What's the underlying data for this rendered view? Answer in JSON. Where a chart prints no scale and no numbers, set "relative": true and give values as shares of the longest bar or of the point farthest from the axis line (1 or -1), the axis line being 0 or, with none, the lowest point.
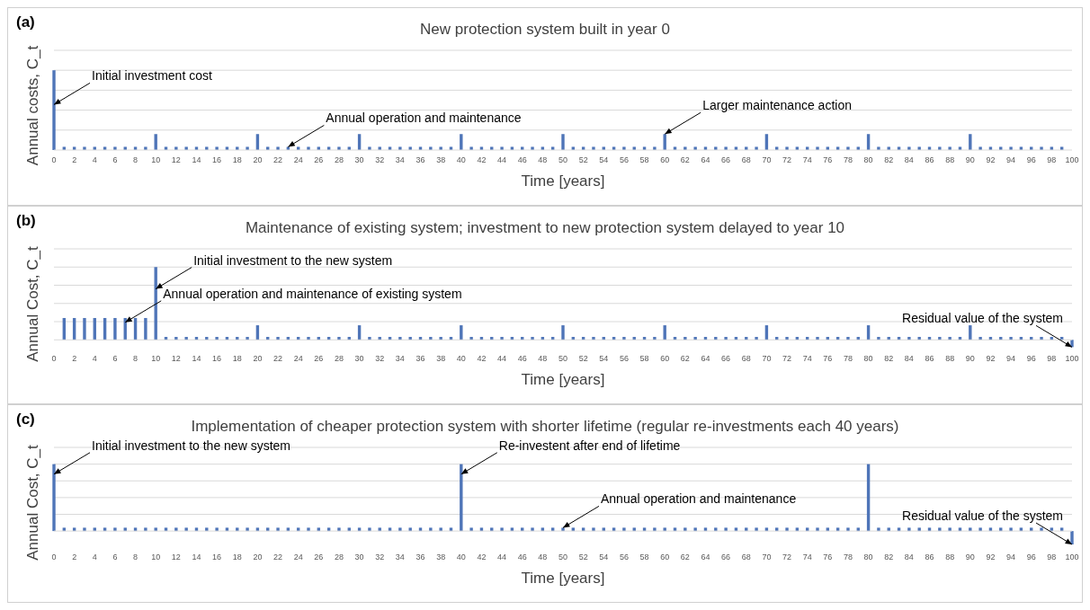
{
  "chart_data": [
    {
      "type": "bar",
      "title": "New protection system built in year 0",
      "xlabel": "Time [years]",
      "ylabel": "Annual costs, C_t",
      "relative": true,
      "grid": true,
      "color": "#4f75b8",
      "x": [
        0,
        1,
        2,
        3,
        4,
        5,
        6,
        7,
        8,
        9,
        10,
        11,
        12,
        13,
        14,
        15,
        16,
        17,
        18,
        19,
        20,
        21,
        22,
        23,
        24,
        25,
        26,
        27,
        28,
        29,
        30,
        31,
        32,
        33,
        34,
        35,
        36,
        37,
        38,
        39,
        40,
        41,
        42,
        43,
        44,
        45,
        46,
        47,
        48,
        49,
        50,
        51,
        52,
        53,
        54,
        55,
        56,
        57,
        58,
        59,
        60,
        61,
        62,
        63,
        64,
        65,
        66,
        67,
        68,
        69,
        70,
        71,
        72,
        73,
        74,
        75,
        76,
        77,
        78,
        79,
        80,
        81,
        82,
        83,
        84,
        85,
        86,
        87,
        88,
        89,
        90,
        91,
        92,
        93,
        94,
        95,
        96,
        97,
        98,
        99,
        100
      ],
      "values": [
        1,
        0.04,
        0.04,
        0.04,
        0.04,
        0.04,
        0.04,
        0.04,
        0.04,
        0.04,
        0.2,
        0.04,
        0.04,
        0.04,
        0.04,
        0.04,
        0.04,
        0.04,
        0.04,
        0.04,
        0.2,
        0.04,
        0.04,
        0.04,
        0.04,
        0.04,
        0.04,
        0.04,
        0.04,
        0.04,
        0.2,
        0.04,
        0.04,
        0.04,
        0.04,
        0.04,
        0.04,
        0.04,
        0.04,
        0.04,
        0.2,
        0.04,
        0.04,
        0.04,
        0.04,
        0.04,
        0.04,
        0.04,
        0.04,
        0.04,
        0.2,
        0.04,
        0.04,
        0.04,
        0.04,
        0.04,
        0.04,
        0.04,
        0.04,
        0.04,
        0.2,
        0.04,
        0.04,
        0.04,
        0.04,
        0.04,
        0.04,
        0.04,
        0.04,
        0.04,
        0.2,
        0.04,
        0.04,
        0.04,
        0.04,
        0.04,
        0.04,
        0.04,
        0.04,
        0.04,
        0.2,
        0.04,
        0.04,
        0.04,
        0.04,
        0.04,
        0.04,
        0.04,
        0.04,
        0.04,
        0.2,
        0.04,
        0.04,
        0.04,
        0.04,
        0.04,
        0.04,
        0.04,
        0.04,
        0.04,
        0
      ],
      "xlim": [
        0,
        100
      ],
      "xticks": [
        0,
        2,
        4,
        6,
        8,
        10,
        12,
        14,
        16,
        18,
        20,
        22,
        24,
        26,
        28,
        30,
        32,
        34,
        36,
        38,
        40,
        42,
        44,
        46,
        48,
        50,
        52,
        54,
        56,
        58,
        60,
        62,
        64,
        66,
        68,
        70,
        72,
        74,
        76,
        78,
        80,
        82,
        84,
        86,
        88,
        90,
        92,
        94,
        96,
        98,
        100
      ],
      "annotations": [
        "(a)",
        {
          "text": "Initial investment cost",
          "x": 0,
          "y": 0.57
        },
        {
          "text": "Annual operation and maintenance",
          "x": 23,
          "y": 0.04
        },
        {
          "text": "Larger maintenance action",
          "x": 60,
          "y": 0.2
        }
      ]
    },
    {
      "type": "bar",
      "title": "Maintenance of existing system; investment to new protection system delayed to year 10",
      "xlabel": "Time [years]",
      "ylabel": "Annual Cost, C_t",
      "relative": true,
      "grid": true,
      "color": "#4f75b8",
      "x": [
        0,
        1,
        2,
        3,
        4,
        5,
        6,
        7,
        8,
        9,
        10,
        11,
        12,
        13,
        14,
        15,
        16,
        17,
        18,
        19,
        20,
        21,
        22,
        23,
        24,
        25,
        26,
        27,
        28,
        29,
        30,
        31,
        32,
        33,
        34,
        35,
        36,
        37,
        38,
        39,
        40,
        41,
        42,
        43,
        44,
        45,
        46,
        47,
        48,
        49,
        50,
        51,
        52,
        53,
        54,
        55,
        56,
        57,
        58,
        59,
        60,
        61,
        62,
        63,
        64,
        65,
        66,
        67,
        68,
        69,
        70,
        71,
        72,
        73,
        74,
        75,
        76,
        77,
        78,
        79,
        80,
        81,
        82,
        83,
        84,
        85,
        86,
        87,
        88,
        89,
        90,
        91,
        92,
        93,
        94,
        95,
        96,
        97,
        98,
        99,
        100
      ],
      "values": [
        0,
        0.3,
        0.3,
        0.3,
        0.3,
        0.3,
        0.3,
        0.3,
        0.3,
        0.3,
        1,
        0.04,
        0.04,
        0.04,
        0.04,
        0.04,
        0.04,
        0.04,
        0.04,
        0.04,
        0.2,
        0.04,
        0.04,
        0.04,
        0.04,
        0.04,
        0.04,
        0.04,
        0.04,
        0.04,
        0.2,
        0.04,
        0.04,
        0.04,
        0.04,
        0.04,
        0.04,
        0.04,
        0.04,
        0.04,
        0.2,
        0.04,
        0.04,
        0.04,
        0.04,
        0.04,
        0.04,
        0.04,
        0.04,
        0.04,
        0.2,
        0.04,
        0.04,
        0.04,
        0.04,
        0.04,
        0.04,
        0.04,
        0.04,
        0.04,
        0.2,
        0.04,
        0.04,
        0.04,
        0.04,
        0.04,
        0.04,
        0.04,
        0.04,
        0.04,
        0.2,
        0.04,
        0.04,
        0.04,
        0.04,
        0.04,
        0.04,
        0.04,
        0.04,
        0.04,
        0.2,
        0.04,
        0.04,
        0.04,
        0.04,
        0.04,
        0.04,
        0.04,
        0.04,
        0.04,
        0.2,
        0.04,
        0.04,
        0.04,
        0.04,
        0.04,
        0.04,
        0.04,
        0.04,
        0.04,
        -0.1
      ],
      "xlim": [
        0,
        100
      ],
      "xticks": [
        0,
        2,
        4,
        6,
        8,
        10,
        12,
        14,
        16,
        18,
        20,
        22,
        24,
        26,
        28,
        30,
        32,
        34,
        36,
        38,
        40,
        42,
        44,
        46,
        48,
        50,
        52,
        54,
        56,
        58,
        60,
        62,
        64,
        66,
        68,
        70,
        72,
        74,
        76,
        78,
        80,
        82,
        84,
        86,
        88,
        90,
        92,
        94,
        96,
        98,
        100
      ],
      "annotations": [
        "(b)",
        {
          "text": "Initial investment to the new system",
          "x": 10,
          "y": 0.7
        },
        {
          "text": "Annual operation and maintenance of existing system",
          "x": 7,
          "y": 0.24
        },
        {
          "text": "Residual value of the system",
          "x": 100,
          "y": -0.1
        }
      ]
    },
    {
      "type": "bar",
      "title": "Implementation of cheaper protection system with shorter lifetime (regular re-investments each 40 years)",
      "xlabel": "Time [years]",
      "ylabel": "Annual Cost, C_t",
      "relative": true,
      "grid": true,
      "color": "#4f75b8",
      "x": [
        0,
        1,
        2,
        3,
        4,
        5,
        6,
        7,
        8,
        9,
        10,
        11,
        12,
        13,
        14,
        15,
        16,
        17,
        18,
        19,
        20,
        21,
        22,
        23,
        24,
        25,
        26,
        27,
        28,
        29,
        30,
        31,
        32,
        33,
        34,
        35,
        36,
        37,
        38,
        39,
        40,
        41,
        42,
        43,
        44,
        45,
        46,
        47,
        48,
        49,
        50,
        51,
        52,
        53,
        54,
        55,
        56,
        57,
        58,
        59,
        60,
        61,
        62,
        63,
        64,
        65,
        66,
        67,
        68,
        69,
        70,
        71,
        72,
        73,
        74,
        75,
        76,
        77,
        78,
        79,
        80,
        81,
        82,
        83,
        84,
        85,
        86,
        87,
        88,
        89,
        90,
        91,
        92,
        93,
        94,
        95,
        96,
        97,
        98,
        99,
        100
      ],
      "values": [
        1,
        0.05,
        0.05,
        0.05,
        0.05,
        0.05,
        0.05,
        0.05,
        0.05,
        0.05,
        0.05,
        0.05,
        0.05,
        0.05,
        0.05,
        0.05,
        0.05,
        0.05,
        0.05,
        0.05,
        0.05,
        0.05,
        0.05,
        0.05,
        0.05,
        0.05,
        0.05,
        0.05,
        0.05,
        0.05,
        0.05,
        0.05,
        0.05,
        0.05,
        0.05,
        0.05,
        0.05,
        0.05,
        0.05,
        0.05,
        1,
        0.05,
        0.05,
        0.05,
        0.05,
        0.05,
        0.05,
        0.05,
        0.05,
        0.05,
        0.05,
        0.05,
        0.05,
        0.05,
        0.05,
        0.05,
        0.05,
        0.05,
        0.05,
        0.05,
        0.05,
        0.05,
        0.05,
        0.05,
        0.05,
        0.05,
        0.05,
        0.05,
        0.05,
        0.05,
        0.05,
        0.05,
        0.05,
        0.05,
        0.05,
        0.05,
        0.05,
        0.05,
        0.05,
        0.05,
        1,
        0.05,
        0.05,
        0.05,
        0.05,
        0.05,
        0.05,
        0.05,
        0.05,
        0.05,
        0.05,
        0.05,
        0.05,
        0.05,
        0.05,
        0.05,
        0.05,
        0.05,
        0.05,
        0.05,
        -0.2
      ],
      "xlim": [
        0,
        100
      ],
      "xticks": [
        0,
        2,
        4,
        6,
        8,
        10,
        12,
        14,
        16,
        18,
        20,
        22,
        24,
        26,
        28,
        30,
        32,
        34,
        36,
        38,
        40,
        42,
        44,
        46,
        48,
        50,
        52,
        54,
        56,
        58,
        60,
        62,
        64,
        66,
        68,
        70,
        72,
        74,
        76,
        78,
        80,
        82,
        84,
        86,
        88,
        90,
        92,
        94,
        96,
        98,
        100
      ],
      "annotations": [
        "(c)",
        {
          "text": "Initial investment to the new system",
          "x": 0,
          "y": 0.85
        },
        {
          "text": "Re-investent after end of lifetime",
          "x": 40,
          "y": 0.85
        },
        {
          "text": "Annual operation and maintenance",
          "x": 50,
          "y": 0.05
        },
        {
          "text": "Residual value of the system",
          "x": 100,
          "y": -0.2
        }
      ]
    }
  ]
}
